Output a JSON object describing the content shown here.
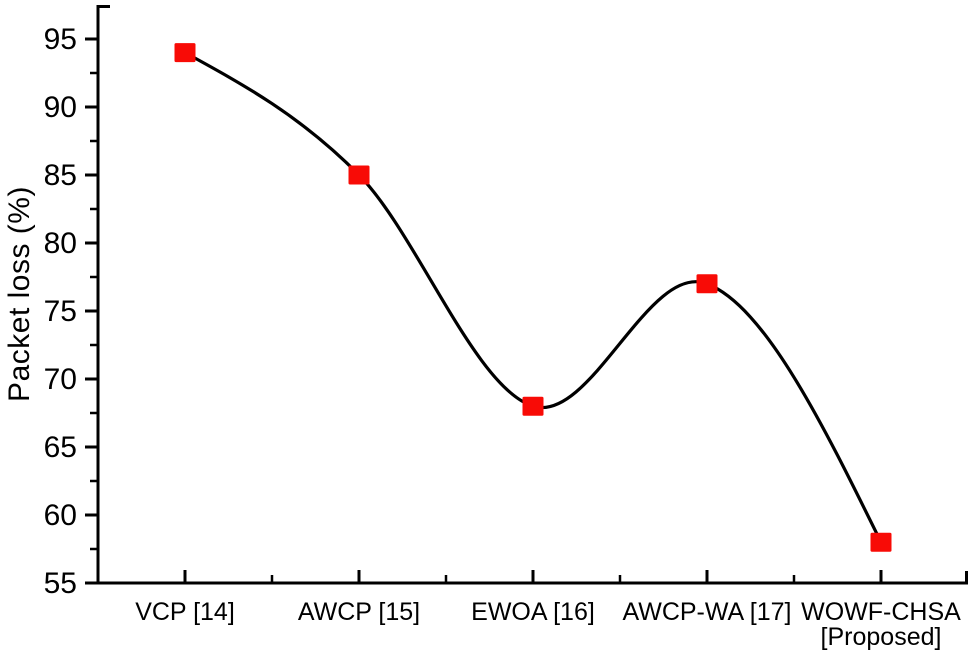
{
  "figure": {
    "background": "#ffffff",
    "text_color": "#000000"
  },
  "chart_data": {
    "type": "line",
    "title": "",
    "xlabel": "",
    "ylabel": "Packet loss (%)",
    "categories": [
      "VCP [14]",
      "AWCP [15]",
      "EWOA [16]",
      "AWCP-WA [17]",
      "WOWF-CHSA [Proposed]"
    ],
    "category_label_lines": [
      [
        "VCP [14]"
      ],
      [
        "AWCP [15]"
      ],
      [
        "EWOA [16]"
      ],
      [
        "AWCP-WA [17]"
      ],
      [
        "WOWF-CHSA",
        "[Proposed]"
      ]
    ],
    "series": [
      {
        "name": "Packet loss",
        "values": [
          94,
          85,
          68,
          77,
          58
        ],
        "line_color": "#000000",
        "marker_shape": "square",
        "marker_color": "#f80b06"
      }
    ],
    "ylim": [
      55,
      97.5
    ],
    "y_major_ticks": [
      55,
      60,
      65,
      70,
      75,
      80,
      85,
      90,
      95
    ],
    "y_minor_tick_step": 2.5,
    "x_minor_ticks_between_categories": true,
    "curve_style": "smooth-spline",
    "grid": false,
    "legend": "none"
  }
}
